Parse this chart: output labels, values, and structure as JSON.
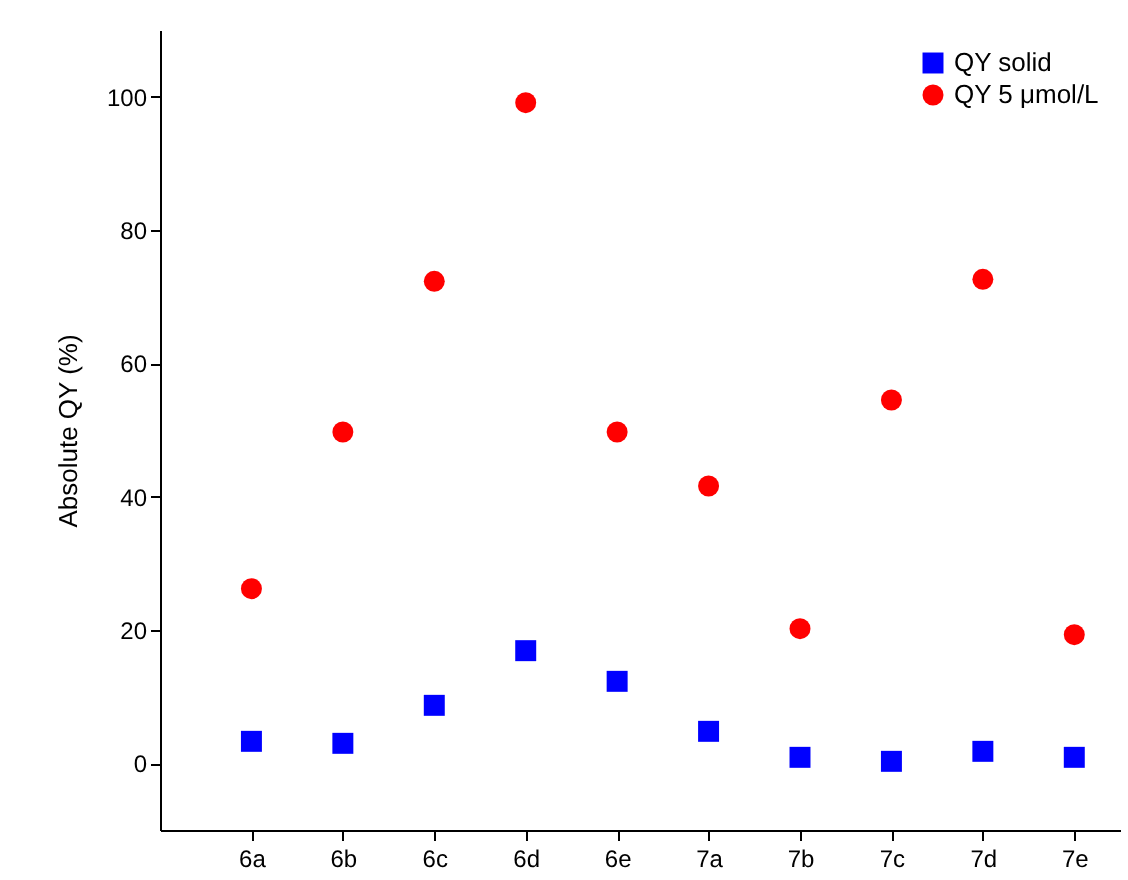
{
  "chart_data": {
    "type": "scatter",
    "ylabel": "Absolute QY (%)",
    "categories": [
      "6a",
      "6b",
      "6c",
      "6d",
      "6e",
      "7a",
      "7b",
      "7c",
      "7d",
      "7e"
    ],
    "series": [
      {
        "name": "QY solid",
        "color": "#0000ff",
        "marker": "square",
        "values": [
          3.3,
          3.0,
          8.7,
          16.9,
          12.3,
          4.8,
          0.9,
          0.3,
          1.8,
          0.9
        ]
      },
      {
        "name": "QY 5 μmol/L",
        "color": "#ff0000",
        "marker": "circle",
        "values": [
          26.2,
          49.7,
          72.3,
          99.1,
          49.7,
          41.6,
          20.2,
          54.5,
          72.6,
          19.3
        ]
      }
    ],
    "ylim": [
      -10,
      110
    ],
    "yticks": [
      0,
      20,
      40,
      60,
      80,
      100
    ],
    "grid": false,
    "legend": "top right"
  }
}
